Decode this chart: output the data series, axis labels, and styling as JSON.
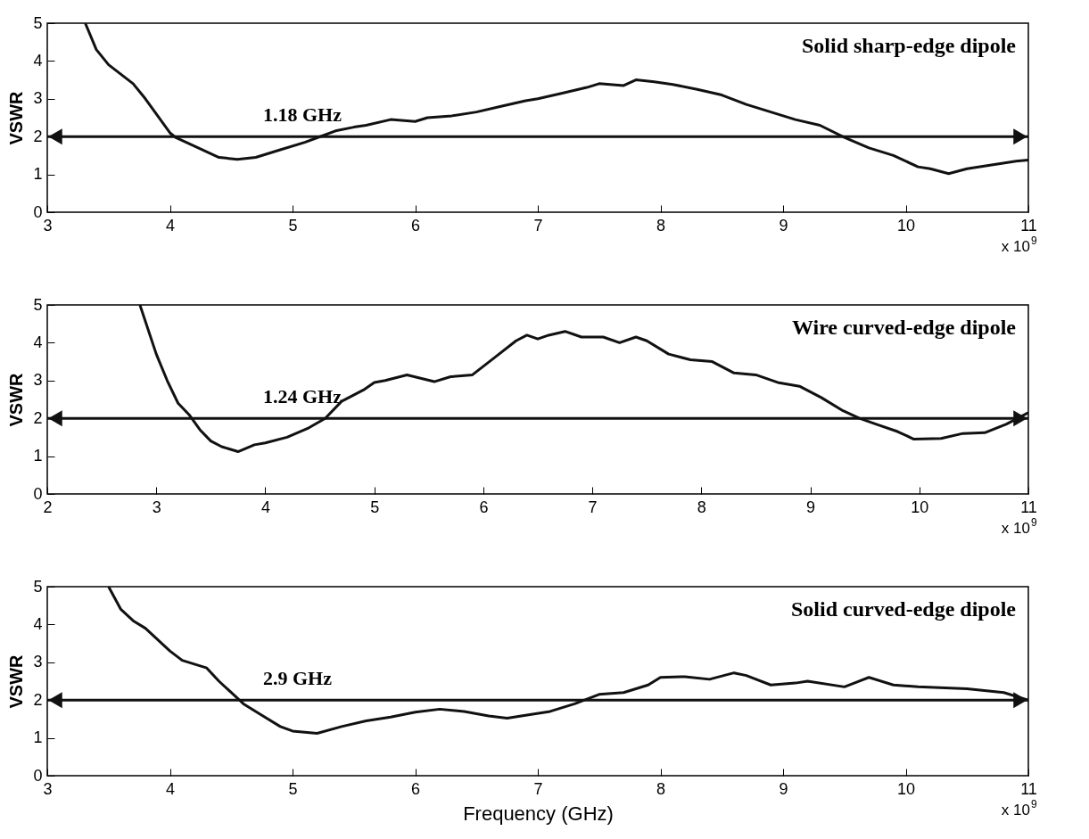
{
  "chart_data": [
    {
      "type": "line",
      "title": "Solid sharp-edge dipole",
      "ylabel": "VSWR",
      "color": "#111111",
      "xlim": [
        3,
        11
      ],
      "xticks": [
        3,
        4,
        5,
        6,
        7,
        8,
        9,
        10,
        11
      ],
      "ylim": [
        0,
        5
      ],
      "yticks": [
        0,
        1,
        2,
        3,
        4,
        5
      ],
      "ref_lines": [
        {
          "axis": "y",
          "value": 2,
          "label": "1.18 GHz",
          "color": "#111111"
        }
      ],
      "annotations": [
        "x 10$^{9}$"
      ],
      "x": [
        3.31,
        3.4,
        3.5,
        3.7,
        3.8,
        4.0,
        4.05,
        4.2,
        4.4,
        4.55,
        4.7,
        4.9,
        5.1,
        5.2,
        5.35,
        5.5,
        5.6,
        5.8,
        6.0,
        6.1,
        6.3,
        6.5,
        6.7,
        6.9,
        7.0,
        7.2,
        7.4,
        7.5,
        7.7,
        7.8,
        7.95,
        8.1,
        8.3,
        8.5,
        8.7,
        8.9,
        9.1,
        9.3,
        9.5,
        9.7,
        9.9,
        10.1,
        10.2,
        10.35,
        10.5,
        10.7,
        10.9,
        11.0
      ],
      "values": [
        5.0,
        4.3,
        3.9,
        3.4,
        3.0,
        2.1,
        1.97,
        1.75,
        1.45,
        1.4,
        1.45,
        1.65,
        1.85,
        1.97,
        2.15,
        2.25,
        2.3,
        2.45,
        2.4,
        2.5,
        2.55,
        2.65,
        2.8,
        2.95,
        3.0,
        3.15,
        3.3,
        3.4,
        3.35,
        3.5,
        3.45,
        3.38,
        3.25,
        3.1,
        2.85,
        2.65,
        2.45,
        2.3,
        1.98,
        1.7,
        1.5,
        1.2,
        1.15,
        1.02,
        1.15,
        1.25,
        1.35,
        1.38
      ]
    },
    {
      "type": "line",
      "title": "Wire curved-edge dipole",
      "ylabel": "VSWR",
      "color": "#111111",
      "xlim": [
        2,
        11
      ],
      "xticks": [
        2,
        3,
        4,
        5,
        6,
        7,
        8,
        9,
        10,
        11
      ],
      "ylim": [
        0,
        5
      ],
      "yticks": [
        0,
        1,
        2,
        3,
        4,
        5
      ],
      "ref_lines": [
        {
          "axis": "y",
          "value": 2,
          "label": "1.24 GHz",
          "color": "#111111"
        }
      ],
      "annotations": [
        "x 10$^{9}$"
      ],
      "x": [
        2.85,
        3.0,
        3.1,
        3.2,
        3.3,
        3.4,
        3.5,
        3.6,
        3.75,
        3.9,
        4.0,
        4.2,
        4.4,
        4.55,
        4.7,
        4.9,
        5.0,
        5.1,
        5.3,
        5.55,
        5.7,
        5.9,
        6.1,
        6.3,
        6.4,
        6.5,
        6.6,
        6.75,
        6.9,
        7.1,
        7.25,
        7.4,
        7.5,
        7.7,
        7.9,
        8.1,
        8.3,
        8.5,
        8.7,
        8.9,
        9.1,
        9.3,
        9.45,
        9.6,
        9.8,
        9.95,
        10.2,
        10.4,
        10.6,
        10.8,
        11.0
      ],
      "values": [
        5.0,
        3.7,
        3.0,
        2.4,
        2.1,
        1.7,
        1.4,
        1.25,
        1.12,
        1.3,
        1.35,
        1.5,
        1.75,
        2.0,
        2.45,
        2.75,
        2.95,
        3.0,
        3.15,
        2.97,
        3.1,
        3.15,
        3.6,
        4.05,
        4.2,
        4.1,
        4.2,
        4.3,
        4.15,
        4.15,
        4.0,
        4.15,
        4.05,
        3.7,
        3.55,
        3.5,
        3.2,
        3.15,
        2.95,
        2.85,
        2.55,
        2.2,
        2.0,
        1.85,
        1.65,
        1.45,
        1.47,
        1.6,
        1.62,
        1.85,
        2.15
      ]
    },
    {
      "type": "line",
      "title": "Solid curved-edge dipole",
      "ylabel": "VSWR",
      "xlabel": "Frequency (GHz)",
      "color": "#111111",
      "xlim": [
        3,
        11
      ],
      "xticks": [
        3,
        4,
        5,
        6,
        7,
        8,
        9,
        10,
        11
      ],
      "ylim": [
        0,
        5
      ],
      "yticks": [
        0,
        1,
        2,
        3,
        4,
        5
      ],
      "ref_lines": [
        {
          "axis": "y",
          "value": 2,
          "label": "2.9 GHz",
          "color": "#111111"
        }
      ],
      "annotations": [
        "x 10$^{9}$"
      ],
      "x": [
        3.5,
        3.6,
        3.7,
        3.8,
        4.0,
        4.1,
        4.3,
        4.4,
        4.5,
        4.6,
        4.75,
        4.9,
        5.0,
        5.2,
        5.4,
        5.6,
        5.8,
        6.0,
        6.2,
        6.4,
        6.6,
        6.75,
        6.9,
        7.1,
        7.3,
        7.5,
        7.7,
        7.9,
        8.0,
        8.2,
        8.4,
        8.6,
        8.7,
        8.9,
        9.1,
        9.2,
        9.5,
        9.7,
        9.9,
        10.1,
        10.5,
        10.8,
        11.0
      ],
      "values": [
        5.0,
        4.4,
        4.1,
        3.9,
        3.3,
        3.05,
        2.85,
        2.5,
        2.2,
        1.9,
        1.6,
        1.3,
        1.18,
        1.12,
        1.3,
        1.45,
        1.55,
        1.68,
        1.76,
        1.7,
        1.58,
        1.52,
        1.6,
        1.7,
        1.9,
        2.15,
        2.2,
        2.4,
        2.6,
        2.62,
        2.55,
        2.72,
        2.65,
        2.4,
        2.45,
        2.5,
        2.35,
        2.6,
        2.4,
        2.35,
        2.3,
        2.2,
        2.0
      ]
    }
  ]
}
